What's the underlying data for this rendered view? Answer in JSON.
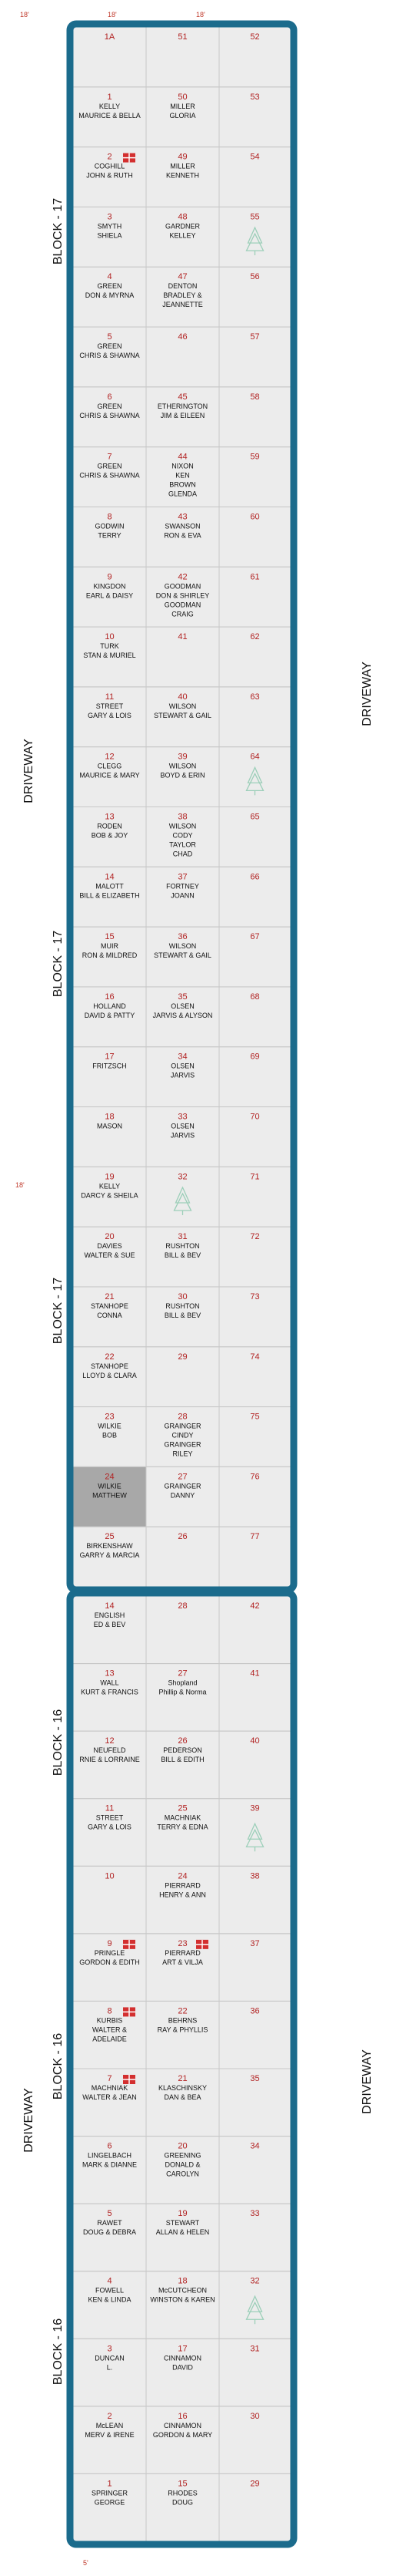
{
  "colors": {
    "frame": "#1b6b8c",
    "cell_bg": "#ececec",
    "cell_line": "#c8c8c8",
    "number": "#b22222",
    "highlight": "#a8a8a8",
    "marker": "#d32f2f",
    "tree": "#9ccfb9"
  },
  "labels": {
    "block_17": "BLOCK - 17",
    "block_16": "BLOCK - 16",
    "driveway": "DRIVEWAY",
    "dim_18": "18'",
    "dim_5": "5'"
  },
  "section_a": {
    "rows": [
      {
        "l": [
          "1A"
        ],
        "m": [
          "51"
        ],
        "r": [
          "52"
        ]
      },
      {
        "l": [
          "1",
          "KELLY",
          "MAURICE & BELLA"
        ],
        "m": [
          "50",
          "MILLER",
          "GLORIA"
        ],
        "r": [
          "53"
        ]
      },
      {
        "l": [
          "2",
          "COGHILL",
          "JOHN & RUTH"
        ],
        "m": [
          "49",
          "MILLER",
          "KENNETH"
        ],
        "r": [
          "54"
        ],
        "mk": "l"
      },
      {
        "l": [
          "3",
          "SMYTH",
          "SHIELA"
        ],
        "m": [
          "48",
          "GARDNER",
          "KELLEY"
        ],
        "r": [
          "55"
        ],
        "tree": "r"
      },
      {
        "l": [
          "4",
          "GREEN",
          "DON & MYRNA"
        ],
        "m": [
          "47",
          "DENTON",
          "BRADLEY &",
          "JEANNETTE"
        ],
        "r": [
          "56"
        ]
      },
      {
        "l": [
          "5",
          "GREEN",
          "CHRIS & SHAWNA"
        ],
        "m": [
          "46"
        ],
        "r": [
          "57"
        ]
      },
      {
        "l": [
          "6",
          "GREEN",
          "CHRIS & SHAWNA"
        ],
        "m": [
          "45",
          "ETHERINGTON",
          "JIM & EILEEN"
        ],
        "r": [
          "58"
        ]
      },
      {
        "l": [
          "7",
          "GREEN",
          "CHRIS & SHAWNA"
        ],
        "m": [
          "44",
          "NIXON",
          "KEN",
          "BROWN",
          "GLENDA"
        ],
        "r": [
          "59"
        ]
      },
      {
        "l": [
          "8",
          "GODWIN",
          "TERRY"
        ],
        "m": [
          "43",
          "SWANSON",
          "RON & EVA"
        ],
        "r": [
          "60"
        ]
      },
      {
        "l": [
          "9",
          "KINGDON",
          "EARL & DAISY"
        ],
        "m": [
          "42",
          "GOODMAN",
          "DON & SHIRLEY",
          "GOODMAN",
          "CRAIG"
        ],
        "r": [
          "61"
        ]
      },
      {
        "l": [
          "10",
          "TURK",
          "STAN & MURIEL"
        ],
        "m": [
          "41"
        ],
        "r": [
          "62"
        ]
      },
      {
        "l": [
          "11",
          "STREET",
          "GARY & LOIS"
        ],
        "m": [
          "40",
          "WILSON",
          "STEWART & GAIL"
        ],
        "r": [
          "63"
        ]
      },
      {
        "l": [
          "12",
          "CLEGG",
          "MAURICE & MARY"
        ],
        "m": [
          "39",
          "WILSON",
          "BOYD & ERIN"
        ],
        "r": [
          "64"
        ],
        "tree": "r"
      },
      {
        "l": [
          "13",
          "RODEN",
          "BOB & JOY"
        ],
        "m": [
          "38",
          "WILSON",
          "CODY",
          "TAYLOR",
          "CHAD"
        ],
        "r": [
          "65"
        ]
      },
      {
        "l": [
          "14",
          "MALOTT",
          "BILL & ELIZABETH"
        ],
        "m": [
          "37",
          "FORTNEY",
          "JOANN"
        ],
        "r": [
          "66"
        ]
      },
      {
        "l": [
          "15",
          "MUIR",
          "RON & MILDRED"
        ],
        "m": [
          "36",
          "WILSON",
          "STEWART & GAIL"
        ],
        "r": [
          "67"
        ]
      },
      {
        "l": [
          "16",
          "HOLLAND",
          "DAVID & PATTY"
        ],
        "m": [
          "35",
          "OLSEN",
          "JARVIS & ALYSON"
        ],
        "r": [
          "68"
        ]
      },
      {
        "l": [
          "17",
          "FRITZSCH"
        ],
        "m": [
          "34",
          "OLSEN",
          "JARVIS"
        ],
        "r": [
          "69"
        ]
      },
      {
        "l": [
          "18",
          "MASON"
        ],
        "m": [
          "33",
          "OLSEN",
          "JARVIS"
        ],
        "r": [
          "70"
        ]
      },
      {
        "l": [
          "19",
          "KELLY",
          "DARCY & SHEILA"
        ],
        "m": [
          "32"
        ],
        "r": [
          "71"
        ],
        "tree": "m"
      },
      {
        "l": [
          "20",
          "DAVIES",
          "WALTER & SUE"
        ],
        "m": [
          "31",
          "RUSHTON",
          "BILL & BEV"
        ],
        "r": [
          "72"
        ]
      },
      {
        "l": [
          "21",
          "STANHOPE",
          "CONNA"
        ],
        "m": [
          "30",
          "RUSHTON",
          "BILL & BEV"
        ],
        "r": [
          "73"
        ]
      },
      {
        "l": [
          "22",
          "STANHOPE",
          "LLOYD & CLARA"
        ],
        "m": [
          "29"
        ],
        "r": [
          "74"
        ]
      },
      {
        "l": [
          "23",
          "WILKIE",
          "BOB"
        ],
        "m": [
          "28",
          "GRAINGER",
          "CINDY",
          "GRAINGER",
          "RILEY"
        ],
        "r": [
          "75"
        ]
      },
      {
        "l": [
          "24",
          "WILKIE",
          "MATTHEW"
        ],
        "m": [
          "27",
          "GRAINGER",
          "DANNY"
        ],
        "r": [
          "76"
        ],
        "hl": "l"
      },
      {
        "l": [
          "25",
          "BIRKENSHAW",
          "GARRY & MARCIA"
        ],
        "m": [
          "26"
        ],
        "r": [
          "77"
        ]
      }
    ]
  },
  "section_b": {
    "rows": [
      {
        "l": [
          "14",
          "ENGLISH",
          "ED & BEV"
        ],
        "m": [
          "28"
        ],
        "r": [
          "42"
        ]
      },
      {
        "l": [
          "13",
          "WALL",
          "KURT & FRANCIS"
        ],
        "m": [
          "27",
          "Shopland",
          "Phillip & Norma"
        ],
        "r": [
          "41"
        ]
      },
      {
        "l": [
          "12",
          "NEUFELD",
          "RNIE & LORRAINE"
        ],
        "m": [
          "26",
          "PEDERSON",
          "BILL & EDITH"
        ],
        "r": [
          "40"
        ]
      },
      {
        "l": [
          "11",
          "STREET",
          "GARY & LOIS"
        ],
        "m": [
          "25",
          "MACHNIAK",
          "TERRY & EDNA"
        ],
        "r": [
          "39"
        ],
        "tree": "r"
      },
      {
        "l": [
          "10"
        ],
        "m": [
          "24",
          "PIERRARD",
          "HENRY & ANN"
        ],
        "r": [
          "38"
        ]
      },
      {
        "l": [
          "9",
          "PRINGLE",
          "GORDON & EDITH"
        ],
        "m": [
          "23",
          "PIERRARD",
          "ART & VILJA"
        ],
        "r": [
          "37"
        ],
        "mk": "lm"
      },
      {
        "l": [
          "8",
          "KURBIS",
          "WALTER &",
          "ADELAIDE"
        ],
        "m": [
          "22",
          "BEHRNS",
          "RAY & PHYLLIS"
        ],
        "r": [
          "36"
        ],
        "mk": "l"
      },
      {
        "l": [
          "7",
          "MACHNIAK",
          "WALTER & JEAN"
        ],
        "m": [
          "21",
          "KLASCHINSKY",
          "DAN & BEA"
        ],
        "r": [
          "35"
        ],
        "mk": "l"
      },
      {
        "l": [
          "6",
          "LINGELBACH",
          "MARK & DIANNE"
        ],
        "m": [
          "20",
          "GREENING",
          "DONALD &",
          "CAROLYN"
        ],
        "r": [
          "34"
        ]
      },
      {
        "l": [
          "5",
          "RAWET",
          "DOUG & DEBRA"
        ],
        "m": [
          "19",
          "STEWART",
          "ALLAN & HELEN"
        ],
        "r": [
          "33"
        ]
      },
      {
        "l": [
          "4",
          "FOWELL",
          "KEN & LINDA"
        ],
        "m": [
          "18",
          "McCUTCHEON",
          "WINSTON & KAREN"
        ],
        "r": [
          "32"
        ],
        "tree": "r"
      },
      {
        "l": [
          "3",
          "DUNCAN",
          "L."
        ],
        "m": [
          "17",
          "CINNAMON",
          "DAVID"
        ],
        "r": [
          "31"
        ]
      },
      {
        "l": [
          "2",
          "McLEAN",
          "MERV & IRENE"
        ],
        "m": [
          "16",
          "CINNAMON",
          "GORDON & MARY"
        ],
        "r": [
          "30"
        ]
      },
      {
        "l": [
          "1",
          "SPRINGER",
          "GEORGE"
        ],
        "m": [
          "15",
          "RHODES",
          "DOUG"
        ],
        "r": [
          "29"
        ]
      }
    ]
  }
}
